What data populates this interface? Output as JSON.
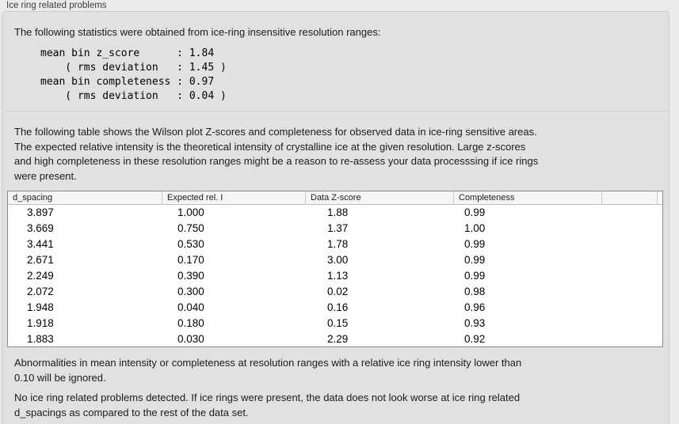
{
  "panel": {
    "title": "Ice ring related problems",
    "intro": "The following statistics were obtained from ice-ring insensitive resolution ranges:",
    "stats_block": "mean bin z_score      : 1.84\n    ( rms deviation   : 1.45 )\nmean bin completeness : 0.97\n    ( rms deviation   : 0.04 )",
    "table_description": "The following table shows the Wilson plot Z-scores and completeness for observed data in ice-ring sensitive areas.\nThe expected relative intensity is the theoretical intensity of crystalline ice at the given resolution. Large z-scores\nand high completeness in these resolution ranges might be a reason to re-assess your data processsing if ice rings\nwere present.",
    "note": "Abnormalities in mean intensity or completeness at resolution ranges with a relative ice ring intensity lower than\n0.10 will be ignored.",
    "conclusion": "No ice ring related problems detected. If ice rings were present, the data does not look worse at ice ring related\nd_spacings as compared to the rest of the data set."
  },
  "stats": {
    "mean_bin_z_score": "1.84",
    "z_score_rms_deviation": "1.45",
    "mean_bin_completeness": "0.97",
    "completeness_rms_deviation": "0.04"
  },
  "chart_data": {
    "type": "table",
    "columns": [
      "d_spacing",
      "Expected rel. I",
      "Data Z-score",
      "Completeness"
    ],
    "rows": [
      [
        "3.897",
        "1.000",
        "1.88",
        "0.99"
      ],
      [
        "3.669",
        "0.750",
        "1.37",
        "1.00"
      ],
      [
        "3.441",
        "0.530",
        "1.78",
        "0.99"
      ],
      [
        "2.671",
        "0.170",
        "3.00",
        "0.99"
      ],
      [
        "2.249",
        "0.390",
        "1.13",
        "0.99"
      ],
      [
        "2.072",
        "0.300",
        "0.02",
        "0.98"
      ],
      [
        "1.948",
        "0.040",
        "0.16",
        "0.96"
      ],
      [
        "1.918",
        "0.180",
        "0.15",
        "0.93"
      ],
      [
        "1.883",
        "0.030",
        "2.29",
        "0.92"
      ]
    ]
  },
  "colors": {
    "page_background": "#ebebeb",
    "groupbox_background": "#e1e1e1",
    "table_header_background": "#f5f5f5",
    "table_border": "#8a8a8a",
    "text": "#1b1b1b"
  }
}
